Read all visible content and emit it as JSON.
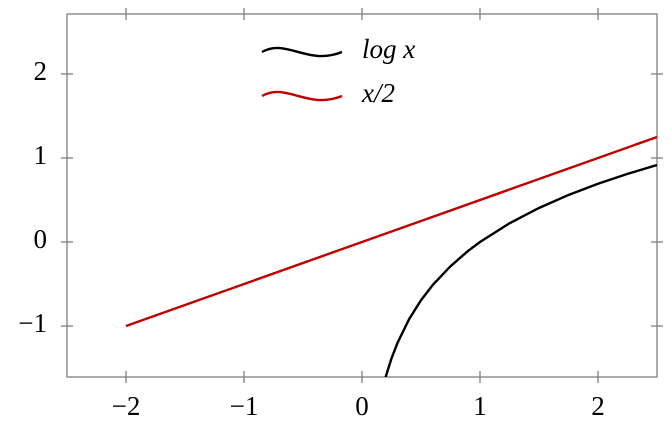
{
  "chart_data": {
    "type": "line",
    "series": [
      {
        "name": "log x",
        "color": "#000000",
        "x": [
          0.2,
          0.25,
          0.3,
          0.4,
          0.5,
          0.6,
          0.75,
          0.9,
          1,
          1.25,
          1.5,
          1.75,
          2,
          2.25,
          2.5
        ],
        "values": [
          -1.609,
          -1.386,
          -1.204,
          -0.916,
          -0.693,
          -0.511,
          -0.288,
          -0.105,
          0,
          0.223,
          0.405,
          0.56,
          0.693,
          0.811,
          0.916
        ]
      },
      {
        "name": "x/2",
        "color": "#c00000",
        "x": [
          -2,
          2.5
        ],
        "values": [
          -1,
          1.25
        ]
      }
    ],
    "xlim": [
      -2.5,
      2.5
    ],
    "ylim": [
      -1.607,
      2.714
    ],
    "xticks": [
      {
        "value": -2,
        "label": "−2"
      },
      {
        "value": -1,
        "label": "−1"
      },
      0,
      1,
      2
    ],
    "yticks": [
      {
        "value": -1,
        "label": "−1"
      },
      0,
      1,
      2
    ],
    "legend": "upper center"
  }
}
